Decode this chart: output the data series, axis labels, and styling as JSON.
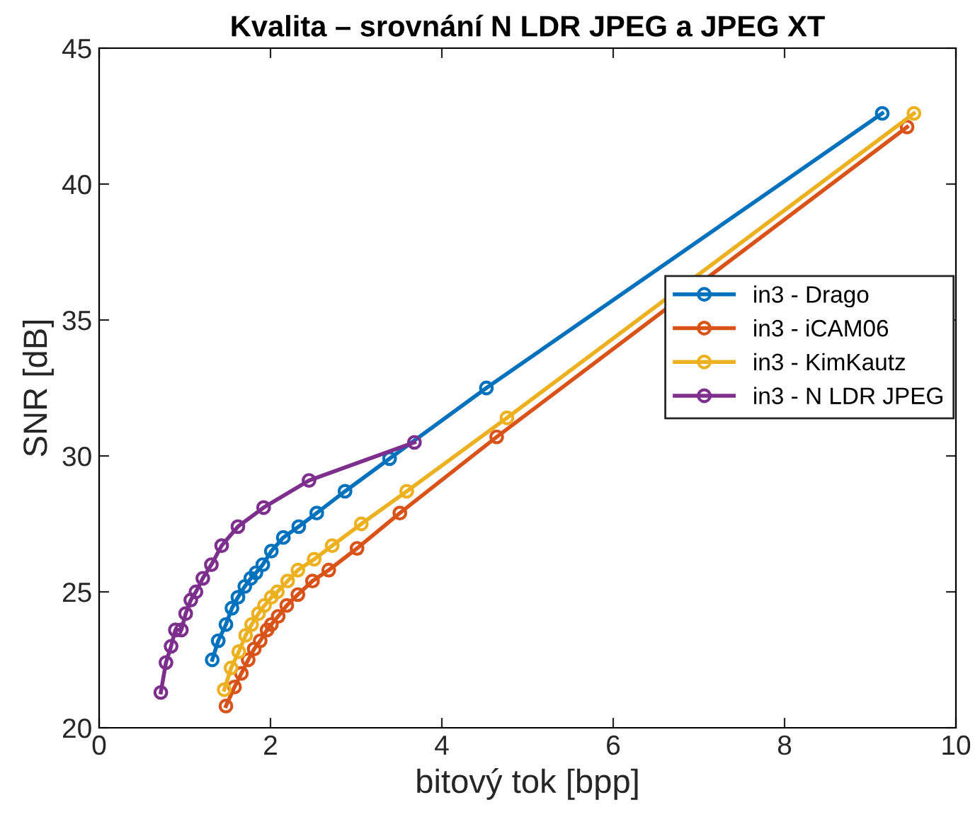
{
  "chart_data": {
    "type": "line",
    "title": "Kvalita – srovnání N LDR JPEG a JPEG XT",
    "xlabel": "bitový tok [bpp]",
    "ylabel": "SNR [dB]",
    "xlim": [
      0,
      10
    ],
    "ylim": [
      20,
      45
    ],
    "xticks": [
      0,
      2,
      4,
      6,
      8,
      10
    ],
    "yticks": [
      20,
      25,
      30,
      35,
      40,
      45
    ],
    "grid": false,
    "legend": "right",
    "marker": "circle",
    "line_style": "solid",
    "series": [
      {
        "name": "in3 - Drago",
        "color": "#0072bd",
        "x": [
          1.32,
          1.39,
          1.48,
          1.55,
          1.62,
          1.7,
          1.77,
          1.83,
          1.91,
          2.01,
          2.15,
          2.33,
          2.54,
          2.87,
          3.39,
          4.52,
          9.14
        ],
        "values": [
          22.5,
          23.2,
          23.8,
          24.4,
          24.8,
          25.2,
          25.5,
          25.7,
          26.0,
          26.5,
          27.0,
          27.4,
          27.9,
          28.7,
          29.9,
          32.5,
          42.6
        ]
      },
      {
        "name": "in3 - iCAM06",
        "color": "#d95319",
        "x": [
          1.48,
          1.58,
          1.66,
          1.74,
          1.81,
          1.88,
          1.96,
          2.01,
          2.09,
          2.19,
          2.32,
          2.49,
          2.68,
          3.01,
          3.51,
          4.64,
          9.43
        ],
        "values": [
          20.8,
          21.5,
          22.0,
          22.5,
          22.9,
          23.2,
          23.6,
          23.8,
          24.1,
          24.5,
          24.9,
          25.4,
          25.8,
          26.6,
          27.9,
          30.7,
          42.1
        ]
      },
      {
        "name": "in3 - KimKautz",
        "color": "#edb120",
        "x": [
          1.46,
          1.54,
          1.63,
          1.71,
          1.78,
          1.86,
          1.93,
          2.01,
          2.08,
          2.2,
          2.32,
          2.51,
          2.72,
          3.06,
          3.59,
          4.76,
          9.51
        ],
        "values": [
          21.4,
          22.2,
          22.8,
          23.4,
          23.8,
          24.2,
          24.5,
          24.8,
          25.0,
          25.4,
          25.8,
          26.2,
          26.7,
          27.5,
          28.7,
          31.4,
          42.6
        ]
      },
      {
        "name": "in3 - N LDR JPEG",
        "color": "#7e2f8e",
        "x": [
          0.72,
          0.78,
          0.84,
          0.89,
          0.96,
          1.01,
          1.07,
          1.13,
          1.21,
          1.31,
          1.43,
          1.62,
          1.92,
          2.45,
          3.68
        ],
        "values": [
          21.3,
          22.4,
          23.0,
          23.6,
          23.6,
          24.2,
          24.7,
          25.0,
          25.5,
          26.0,
          26.7,
          27.4,
          28.1,
          29.1,
          30.5
        ]
      }
    ]
  }
}
